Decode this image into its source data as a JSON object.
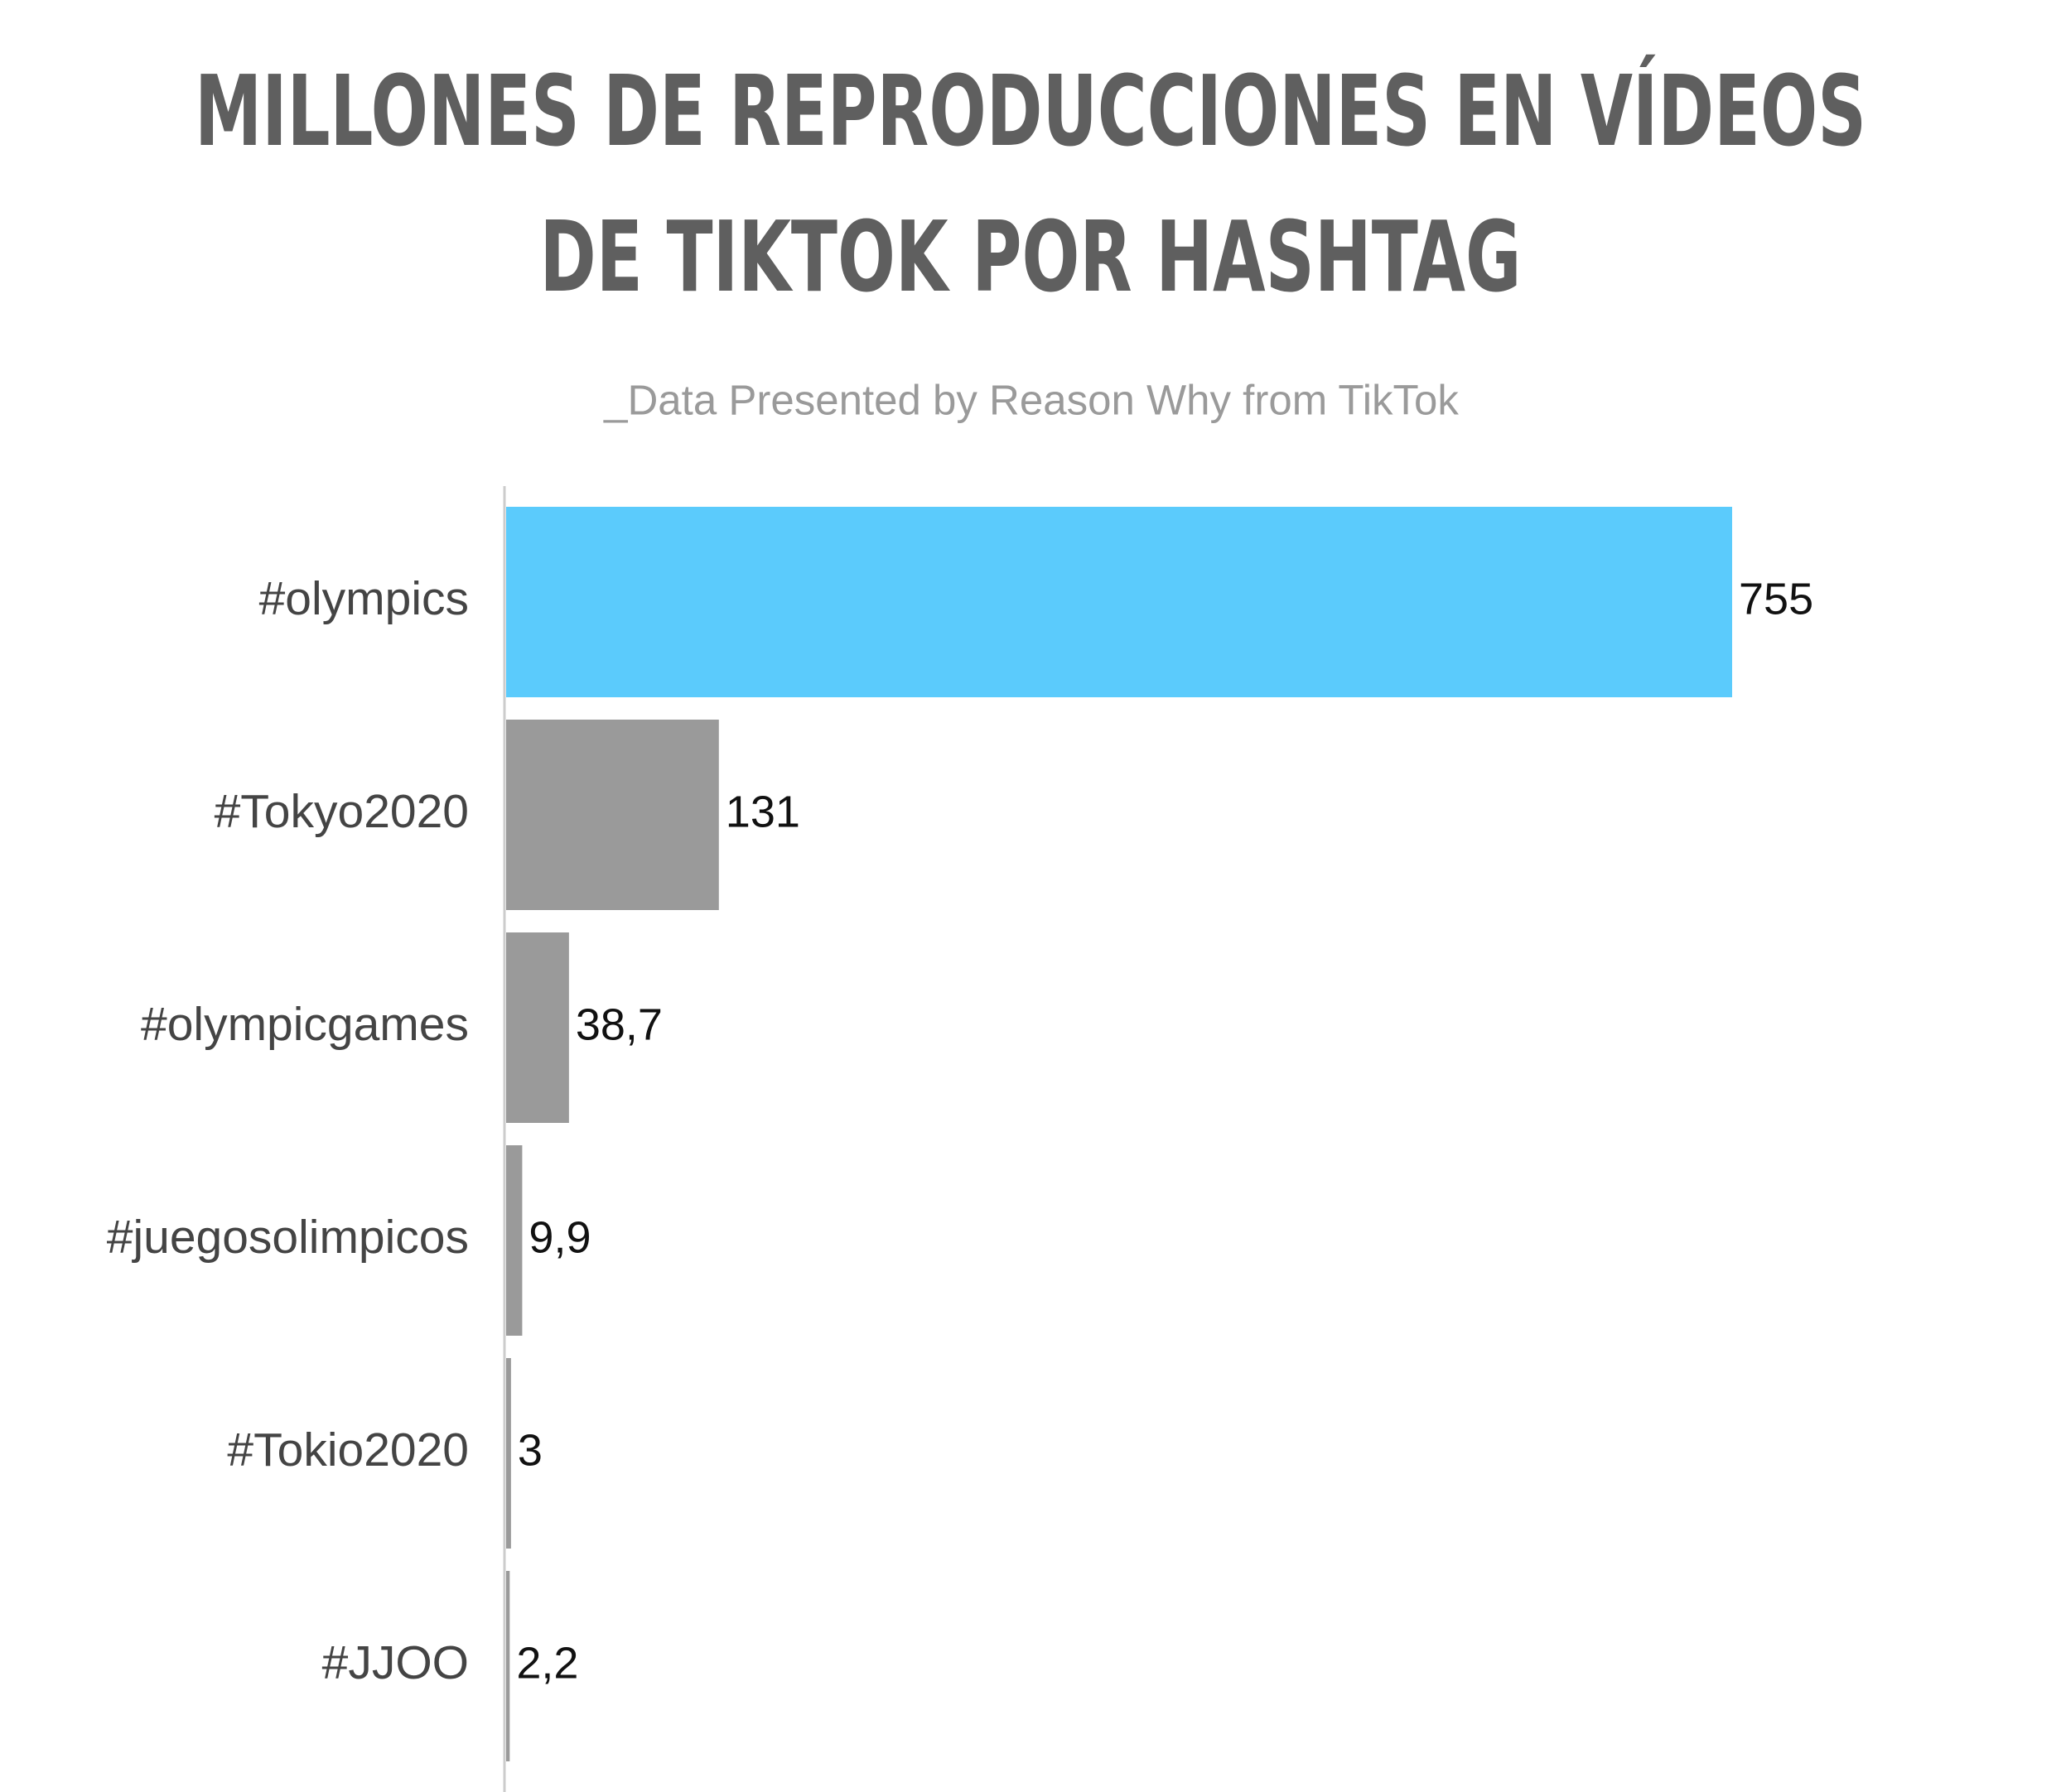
{
  "chart_data": {
    "type": "bar",
    "orientation": "horizontal",
    "title": [
      "MILLONES DE REPRODUCCIONES EN VÍDEOS",
      "DE TIKTOK POR HASHTAG"
    ],
    "subtitle": "_Data Presented by Reason Why from TikTok",
    "categories": [
      "#olympics",
      "#Tokyo2020",
      "#olympicgames",
      "#juegosolimpicos",
      "#Tokio2020",
      "#JJOO"
    ],
    "values": [
      755,
      131,
      38.7,
      9.9,
      3,
      2.2
    ],
    "value_labels": [
      "755",
      "131",
      "38,7",
      "9,9",
      "3",
      "2,2"
    ],
    "colors": [
      "#5bcbfc",
      "#9a9a9a",
      "#9a9a9a",
      "#9a9a9a",
      "#9a9a9a",
      "#9a9a9a"
    ]
  }
}
